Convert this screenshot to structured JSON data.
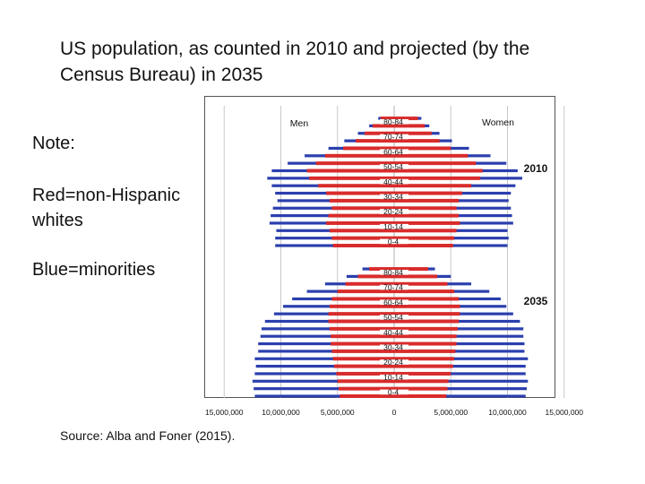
{
  "title": "US population, as counted in 2010 and projected (by the Census Bureau) in 2035",
  "notes": {
    "note": "Note:",
    "red": "Red=non-Hispanic whites",
    "blue": "Blue=minorities"
  },
  "source": "Source:  Alba and Foner (2015).",
  "colors": {
    "minorities": "#2b3fae",
    "whites": "#d92b2b"
  },
  "chart_data": {
    "type": "bar",
    "orientation": "population-pyramid",
    "sex_labels": {
      "men": "Men",
      "women": "Women"
    },
    "x_ticks": [
      {
        "value": -15000000,
        "label": "15,000,000"
      },
      {
        "value": -10000000,
        "label": "10,000,000"
      },
      {
        "value": -5000000,
        "label": "5,000,000"
      },
      {
        "value": 0,
        "label": "0"
      },
      {
        "value": 5000000,
        "label": "5,000,000"
      },
      {
        "value": 10000000,
        "label": "10,000,000"
      },
      {
        "value": 15000000,
        "label": "15,000,000"
      }
    ],
    "xlim": [
      -15000000,
      15000000
    ],
    "series_names": [
      "non-Hispanic whites",
      "minorities"
    ],
    "panels": [
      {
        "year": "2010",
        "age_groups": [
          "0-4",
          "5-9",
          "10-14",
          "15-19",
          "20-24",
          "25-29",
          "30-34",
          "35-39",
          "40-44",
          "45-49",
          "50-54",
          "55-59",
          "60-64",
          "65-69",
          "70-74",
          "75-79",
          "80-84",
          "85+"
        ],
        "age_labels_shown": [
          "0-4",
          "10-14",
          "20-24",
          "30-34",
          "40-44",
          "50-54",
          "60-64",
          "70-74",
          "80-84"
        ],
        "men_whites": [
          5400000,
          5500000,
          5700000,
          6000000,
          5800000,
          5500000,
          5700000,
          6000000,
          6700000,
          7500000,
          7700000,
          6900000,
          6100000,
          4500000,
          3400000,
          2600000,
          1900000,
          1200000
        ],
        "men_total": [
          10500000,
          10500000,
          10400000,
          11000000,
          10900000,
          10700000,
          10300000,
          10500000,
          10800000,
          11200000,
          10800000,
          9400000,
          7900000,
          5800000,
          4400000,
          3200000,
          2200000,
          1400000
        ],
        "women_whites": [
          5200000,
          5300000,
          5500000,
          5800000,
          5700000,
          5500000,
          5700000,
          6000000,
          6800000,
          7600000,
          7800000,
          7200000,
          6500000,
          5000000,
          4000000,
          3300000,
          2700000,
          2100000
        ],
        "women_total": [
          10000000,
          10100000,
          10000000,
          10500000,
          10400000,
          10300000,
          10100000,
          10300000,
          10700000,
          11300000,
          10900000,
          9900000,
          8500000,
          6600000,
          5100000,
          4000000,
          3100000,
          2400000
        ]
      },
      {
        "year": "2035",
        "age_groups": [
          "0-4",
          "5-9",
          "10-14",
          "15-19",
          "20-24",
          "25-29",
          "30-34",
          "35-39",
          "40-44",
          "45-49",
          "50-54",
          "55-59",
          "60-64",
          "65-69",
          "70-74",
          "75-79",
          "80-84",
          "85+"
        ],
        "age_labels_shown": [
          "0-4",
          "10-14",
          "20-24",
          "30-34",
          "40-44",
          "50-54",
          "60-64",
          "70-74",
          "80-84"
        ],
        "men_whites": [
          4800000,
          4900000,
          5000000,
          5100000,
          5300000,
          5400000,
          5500000,
          5600000,
          5600000,
          5700000,
          5800000,
          5800000,
          5700000,
          5500000,
          5000000,
          4300000,
          3200000,
          2200000
        ],
        "men_total": [
          12300000,
          12400000,
          12500000,
          12300000,
          12200000,
          12300000,
          12000000,
          12000000,
          11800000,
          11700000,
          11400000,
          10600000,
          9800000,
          9000000,
          7700000,
          6100000,
          4200000,
          2800000
        ],
        "women_whites": [
          4600000,
          4700000,
          4800000,
          5000000,
          5200000,
          5300000,
          5400000,
          5500000,
          5500000,
          5600000,
          5700000,
          5800000,
          5800000,
          5700000,
          5300000,
          4700000,
          3800000,
          3000000
        ],
        "women_total": [
          11600000,
          11700000,
          11800000,
          11600000,
          11600000,
          11800000,
          11500000,
          11500000,
          11400000,
          11400000,
          11100000,
          10500000,
          9900000,
          9400000,
          8400000,
          6800000,
          5000000,
          3600000
        ]
      }
    ]
  }
}
